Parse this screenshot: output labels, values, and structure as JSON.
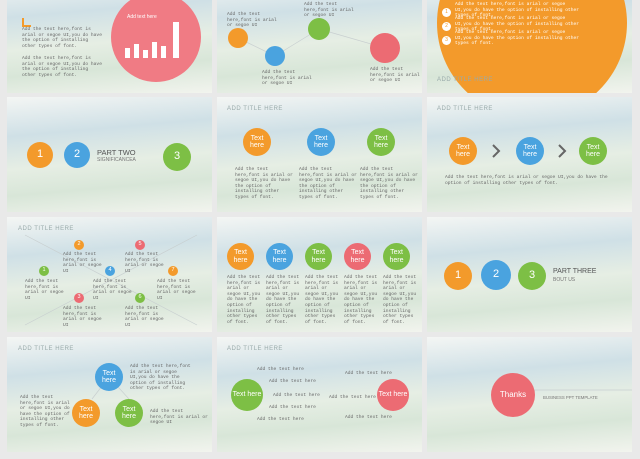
{
  "slides": [
    {
      "items": [
        "Add the text here,font is arial or segoe UI,you do have the option of installing other types of font.",
        "Add the text here,font is arial or segoe UI,you do have the option of installing other types of font.",
        "Add text here"
      ]
    },
    {
      "items": [
        "Add the text here,font is arial or segoe UI",
        "Add the text here,font is arial or segoe UI",
        "Add the text here,font is arial or segoe UI",
        "Add the text here,font is arial or segoe UI"
      ]
    },
    {
      "items": [
        "1",
        "2",
        "3",
        "Add the text here,font is arial or segoe UI,you do have the option of installing other types of font.",
        "Add the text here,font is arial or segoe UI,you do have the option of installing other types of font.",
        "Add the text here,font is arial or segoe UI,you do have the option of installing other types of font.",
        "ADD TITLE HERE"
      ]
    },
    {
      "items": [
        "1",
        "2",
        "3",
        "PART TWO",
        "SIGNIFICANCEA"
      ]
    },
    {
      "items": [
        "ADD TITLE HERE",
        "Text here",
        "Text here",
        "Text here",
        "Add the text here,font is arial or segoe UI,you do have the option of installing other types of font.",
        "Add the text here,font is arial or segoe UI,you do have the option of installing other types of font.",
        "Add the text here,font is arial or segoe UI,you do have the option of installing other types of font."
      ]
    },
    {
      "items": [
        "ADD TITLE HERE",
        "Text here",
        "Text here",
        "Text here",
        "Add the text here,font is arial or segoe UI,you do have the option of installing other types of font."
      ]
    },
    {
      "items": [
        "ADD TITLE HERE",
        "1",
        "2",
        "3",
        "4",
        "5",
        "6",
        "7",
        "Add the text here,font is arial or segoe UI",
        "Add the text here,font is arial or segoe UI",
        "Add the text here,font is arial or segoe UI",
        "Add the text here,font is arial or segoe UI",
        "Add the text here,font is arial or segoe UI",
        "Add the text here,font is arial or segoe UI",
        "Add the text here,font is arial or segoe UI"
      ]
    },
    {
      "items": [
        "Text here",
        "Text here",
        "Text here",
        "Text here",
        "Text here",
        "Add the text here,font is arial or segoe UI,you do have the option of installing other types of font.",
        "Add the text here,font is arial or segoe UI,you do have the option of installing other types of font.",
        "Add the text here,font is arial or segoe UI,you do have the option of installing other types of font.",
        "Add the text here,font is arial or segoe UI,you do have the option of installing other types of font.",
        "Add the text here,font is arial or segoe UI,you do have the option of installing other types of font."
      ]
    },
    {
      "items": [
        "1",
        "2",
        "3",
        "PART THREE",
        "BOUT US"
      ]
    },
    {
      "items": [
        "ADD TITLE HERE",
        "Text here",
        "Text here",
        "Text here",
        "Add the text here,font is arial or segoe UI,you do have the option of installing other types of font.",
        "Add the text here,font is arial or segoe UI,you do have the option of installing other types of font.",
        "Add the text here,font is arial or segoe UI"
      ]
    },
    {
      "items": [
        "ADD TITLE HERE",
        "Text here",
        "Text here",
        "Add the text here",
        "Add the text here",
        "Add the text here",
        "Add the text here",
        "Add the text here",
        "Add the text here",
        "Add the text here",
        "Add the text here"
      ]
    },
    {
      "items": [
        "Thanks",
        "BUSINESS  PPT  TEMPLATE"
      ]
    }
  ]
}
